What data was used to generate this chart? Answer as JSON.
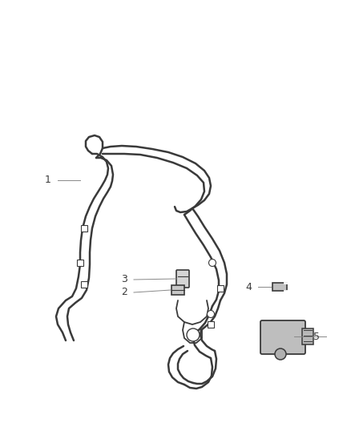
{
  "background_color": "#ffffff",
  "line_color": "#3a3a3a",
  "label_color": "#3a3a3a",
  "label_line_color": "#888888",
  "fig_width": 4.38,
  "fig_height": 5.33,
  "dpi": 100
}
